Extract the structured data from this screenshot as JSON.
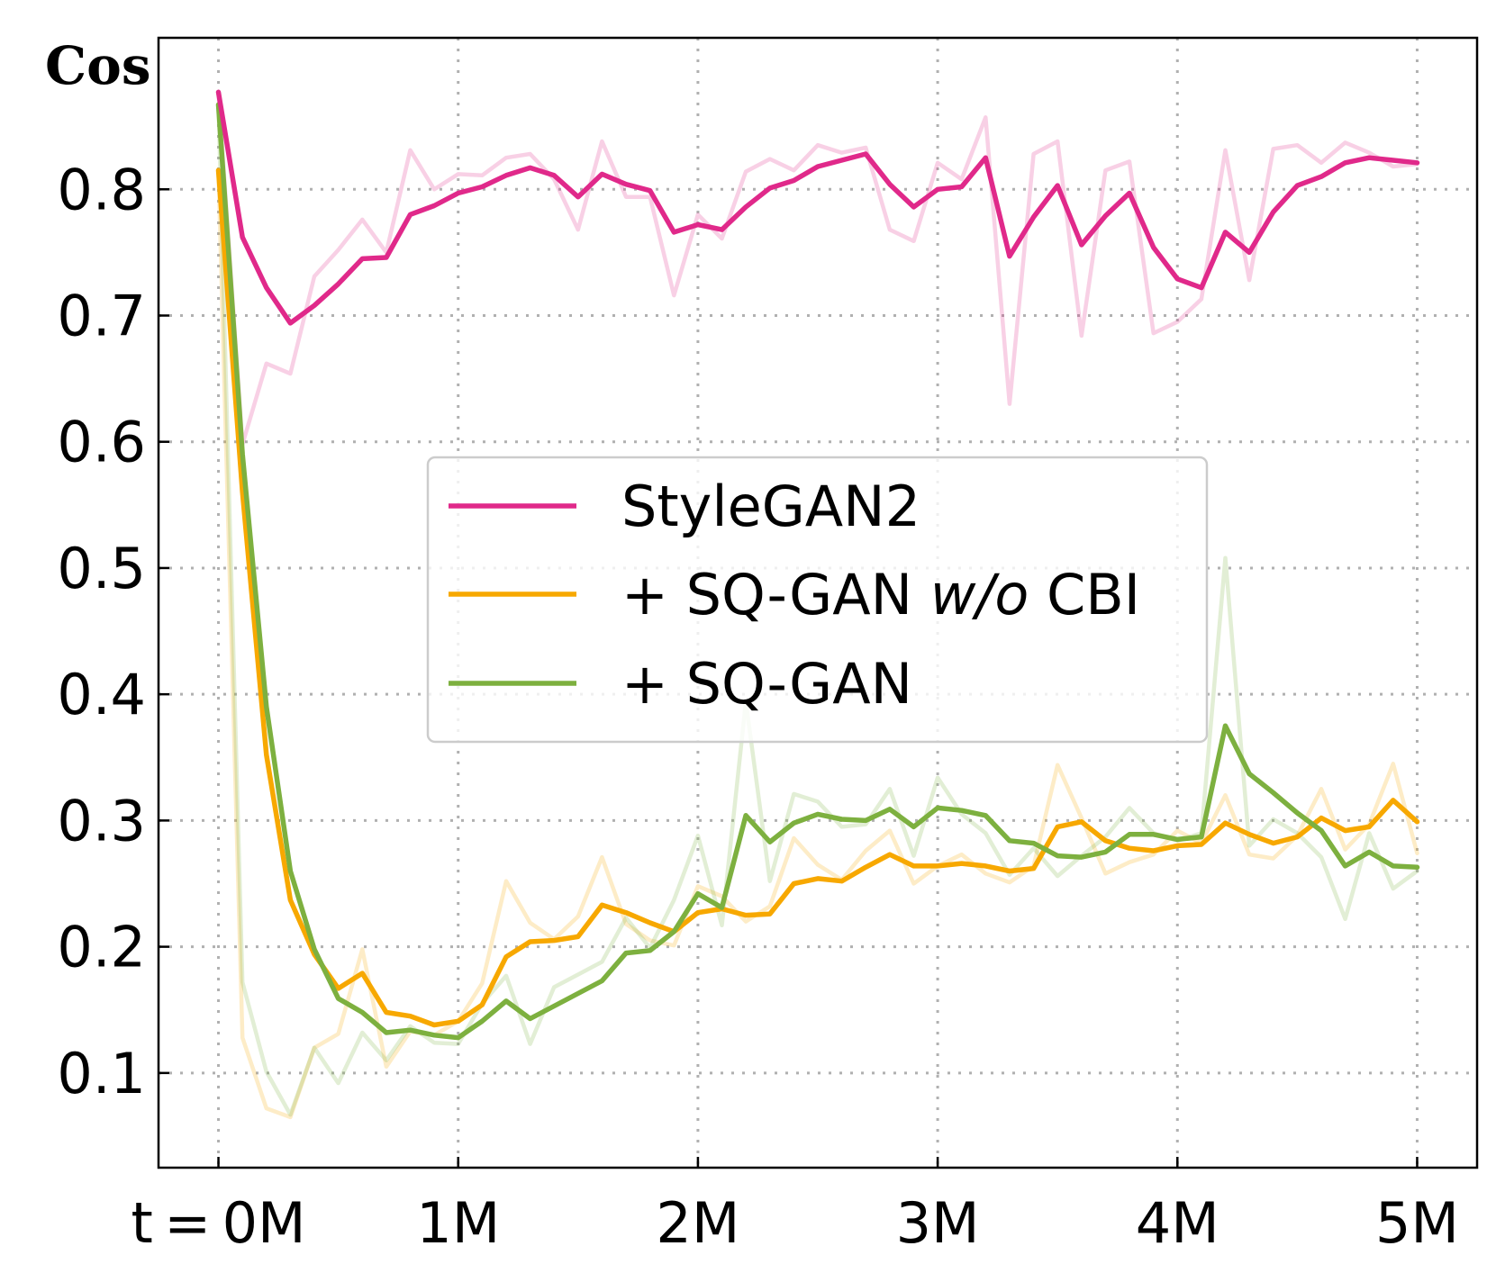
{
  "chart_data": {
    "type": "line",
    "ylabel": "Cos",
    "xlim": [
      -0.25,
      5.25
    ],
    "ylim": [
      0.025,
      0.92
    ],
    "xticks": [
      0,
      1,
      2,
      3,
      4,
      5
    ],
    "xtick_labels": [
      "t = 0M",
      "1M",
      "2M",
      "3M",
      "4M",
      "5M"
    ],
    "yticks": [
      0.1,
      0.2,
      0.3,
      0.4,
      0.5,
      0.6,
      0.7,
      0.8
    ],
    "ytick_labels": [
      "0.1",
      "0.2",
      "0.3",
      "0.4",
      "0.5",
      "0.6",
      "0.7",
      "0.8"
    ],
    "grid": true,
    "legend": {
      "placement": "center"
    },
    "x": [
      0,
      0.1,
      0.2,
      0.3,
      0.4,
      0.5,
      0.6,
      0.7,
      0.8,
      0.9,
      1.0,
      1.1,
      1.2,
      1.3,
      1.4,
      1.5,
      1.6,
      1.7,
      1.8,
      1.9,
      2.0,
      2.1,
      2.2,
      2.3,
      2.4,
      2.5,
      2.6,
      2.7,
      2.8,
      2.9,
      3.0,
      3.1,
      3.2,
      3.3,
      3.4,
      3.5,
      3.6,
      3.7,
      3.8,
      3.9,
      4.0,
      4.1,
      4.2,
      4.3,
      4.4,
      4.5,
      4.6,
      4.7,
      4.8,
      4.9,
      5.0
    ],
    "series": [
      {
        "name": "StyleGAN2",
        "color": "#e0298a",
        "values": [
          0.877,
          0.762,
          0.722,
          0.694,
          0.708,
          0.725,
          0.745,
          0.746,
          0.78,
          0.787,
          0.797,
          0.802,
          0.811,
          0.817,
          0.811,
          0.794,
          0.812,
          0.804,
          0.799,
          0.766,
          0.772,
          0.768,
          0.786,
          0.801,
          0.807,
          0.818,
          0.823,
          0.828,
          0.804,
          0.786,
          0.8,
          0.802,
          0.825,
          0.747,
          0.778,
          0.803,
          0.756,
          0.779,
          0.797,
          0.754,
          0.729,
          0.722,
          0.766,
          0.75,
          0.782,
          0.803,
          0.81,
          0.821,
          0.825,
          0.823,
          0.821
        ],
        "raw_values": [
          0.877,
          0.598,
          0.662,
          0.654,
          0.731,
          0.752,
          0.776,
          0.75,
          0.831,
          0.8,
          0.812,
          0.811,
          0.825,
          0.828,
          0.808,
          0.768,
          0.838,
          0.794,
          0.794,
          0.716,
          0.78,
          0.761,
          0.814,
          0.824,
          0.815,
          0.835,
          0.829,
          0.833,
          0.768,
          0.759,
          0.821,
          0.808,
          0.857,
          0.63,
          0.828,
          0.838,
          0.684,
          0.815,
          0.822,
          0.686,
          0.695,
          0.713,
          0.831,
          0.728,
          0.832,
          0.835,
          0.821,
          0.837,
          0.829,
          0.818,
          0.82
        ]
      },
      {
        "name": "+ SQ-GAN w/o CBI",
        "color": "#f7a800",
        "values": [
          0.815,
          0.56,
          0.352,
          0.237,
          0.194,
          0.167,
          0.179,
          0.148,
          0.145,
          0.138,
          0.141,
          0.154,
          0.192,
          0.204,
          0.205,
          0.208,
          0.233,
          0.227,
          0.219,
          0.212,
          0.227,
          0.23,
          0.225,
          0.226,
          0.25,
          0.254,
          0.252,
          0.263,
          0.273,
          0.264,
          0.264,
          0.266,
          0.264,
          0.26,
          0.262,
          0.295,
          0.299,
          0.284,
          0.278,
          0.276,
          0.28,
          0.281,
          0.298,
          0.289,
          0.282,
          0.287,
          0.302,
          0.292,
          0.295,
          0.316,
          0.299
        ],
        "raw_values": [
          0.815,
          0.128,
          0.072,
          0.065,
          0.12,
          0.131,
          0.198,
          0.105,
          0.133,
          0.13,
          0.141,
          0.171,
          0.252,
          0.219,
          0.206,
          0.224,
          0.271,
          0.218,
          0.205,
          0.201,
          0.248,
          0.24,
          0.22,
          0.232,
          0.286,
          0.265,
          0.253,
          0.276,
          0.292,
          0.25,
          0.264,
          0.273,
          0.258,
          0.251,
          0.264,
          0.344,
          0.302,
          0.258,
          0.267,
          0.273,
          0.292,
          0.282,
          0.32,
          0.273,
          0.27,
          0.288,
          0.325,
          0.277,
          0.297,
          0.345,
          0.274
        ]
      },
      {
        "name": "+ SQ-GAN",
        "color": "#7db03f",
        "values": [
          0.867,
          0.59,
          0.39,
          0.26,
          0.198,
          0.159,
          0.148,
          0.132,
          0.134,
          0.13,
          0.128,
          0.141,
          0.157,
          0.143,
          0.153,
          0.163,
          0.173,
          0.195,
          0.197,
          0.212,
          0.242,
          0.231,
          0.304,
          0.283,
          0.298,
          0.305,
          0.301,
          0.3,
          0.309,
          0.295,
          0.31,
          0.308,
          0.304,
          0.284,
          0.282,
          0.272,
          0.271,
          0.275,
          0.289,
          0.289,
          0.285,
          0.287,
          0.375,
          0.337,
          0.322,
          0.306,
          0.292,
          0.264,
          0.275,
          0.264,
          0.263
        ],
        "raw_values": [
          0.867,
          0.172,
          0.101,
          0.067,
          0.12,
          0.092,
          0.132,
          0.11,
          0.137,
          0.124,
          0.123,
          0.155,
          0.177,
          0.123,
          0.168,
          0.178,
          0.188,
          0.223,
          0.199,
          0.237,
          0.288,
          0.217,
          0.394,
          0.252,
          0.321,
          0.315,
          0.295,
          0.297,
          0.325,
          0.272,
          0.334,
          0.305,
          0.29,
          0.257,
          0.278,
          0.256,
          0.272,
          0.287,
          0.31,
          0.29,
          0.284,
          0.29,
          0.508,
          0.28,
          0.301,
          0.29,
          0.271,
          0.222,
          0.29,
          0.246,
          0.26
        ]
      }
    ],
    "legend_entries": [
      {
        "prefix": "StyleGAN2",
        "italic": "",
        "suffix": ""
      },
      {
        "prefix": "+ SQ-GAN ",
        "italic": "w/o",
        "suffix": " CBI"
      },
      {
        "prefix": "+ SQ-GAN",
        "italic": "",
        "suffix": ""
      }
    ]
  }
}
